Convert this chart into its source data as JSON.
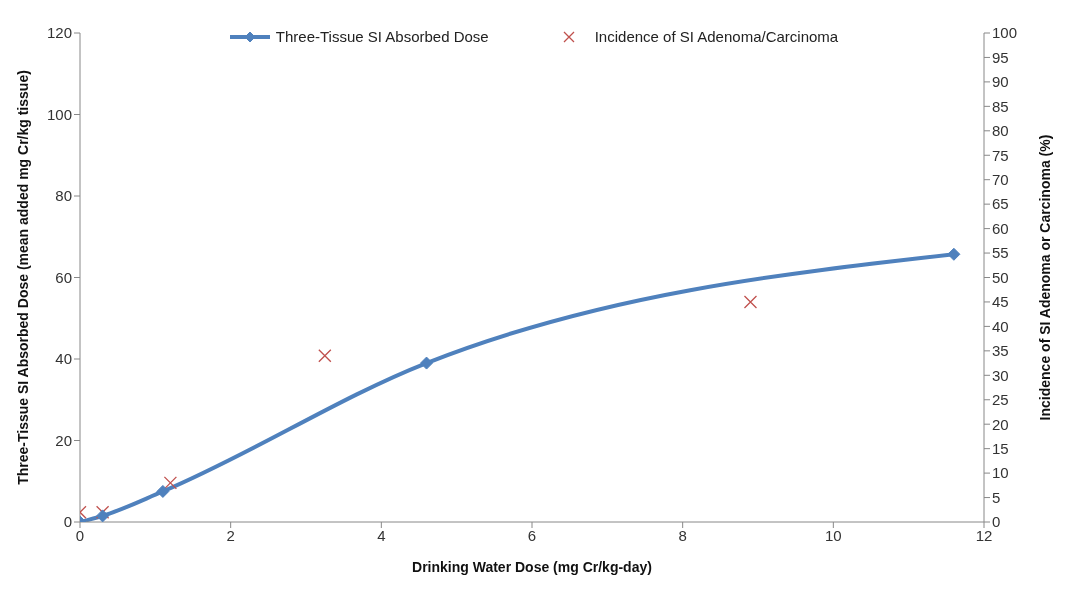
{
  "chart_data": {
    "type": "line",
    "xlabel": "Drinking Water Dose (mg Cr/kg-day)",
    "ylabel": "Three-Tissue SI Absorbed Dose (mean added mg Cr/kg tissue)",
    "y2label": "Incidence of SI Adenoma or Carcinoma (%)",
    "xlim": [
      0,
      12
    ],
    "xticks": [
      0,
      2,
      4,
      6,
      8,
      10,
      12
    ],
    "ylim": [
      0,
      120
    ],
    "yticks": [
      0,
      20,
      40,
      60,
      80,
      100,
      120
    ],
    "y2lim": [
      0,
      100
    ],
    "y2ticks": [
      0,
      5,
      10,
      15,
      20,
      25,
      30,
      35,
      40,
      45,
      50,
      55,
      60,
      65,
      70,
      75,
      80,
      85,
      90,
      95,
      100
    ],
    "grid": false,
    "legend": "top",
    "line_style": "solid",
    "series": [
      {
        "name": "Three-Tissue SI Absorbed Dose",
        "color": "#4f81bd",
        "marker": "diamond",
        "x": [
          0,
          0.3,
          1.1,
          4.6,
          11.6
        ],
        "values": [
          0,
          1.5,
          7.5,
          39,
          65.7
        ]
      },
      {
        "name": "Incidence of SI Adenoma/Carcinoma",
        "type": "scatter",
        "axis": "y2",
        "color": "#c0504d",
        "marker": "cross",
        "x": [
          0,
          0.3,
          1.2,
          3.25,
          8.9
        ],
        "values": [
          2,
          2,
          8,
          34,
          45
        ]
      }
    ]
  }
}
